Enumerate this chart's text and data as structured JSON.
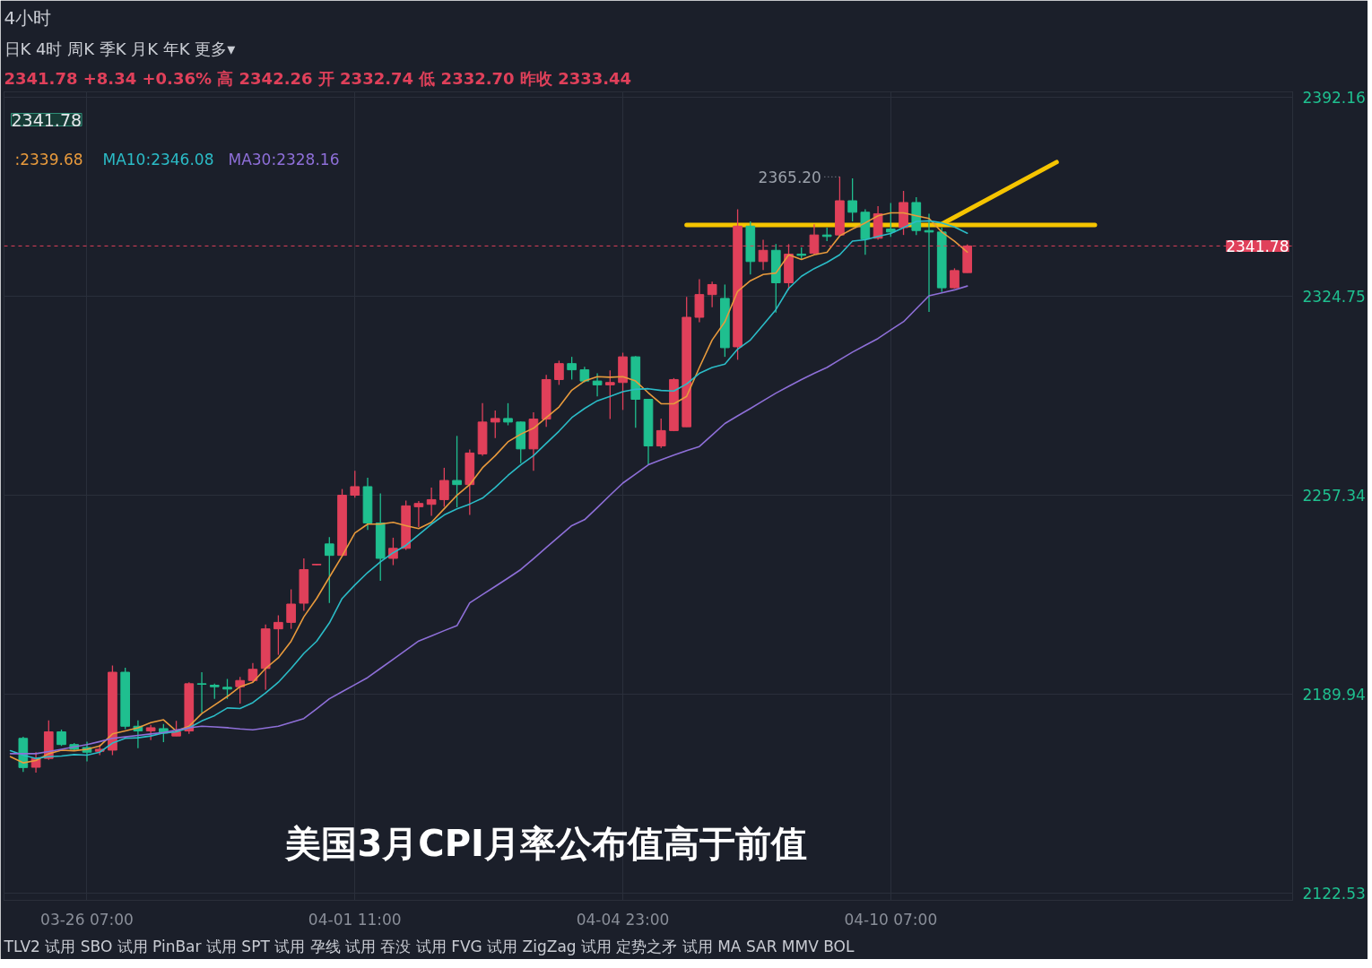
{
  "chart_data": {
    "type": "candlestick",
    "title": "4小时",
    "subtitle": "2341.78   +8.34   +0.36%   高 2342.26   开 2332.74   低 2332.70   昨收 2333.44",
    "categories": [
      null,
      null,
      null,
      null,
      null,
      null,
      "03-26 07:00",
      null,
      null,
      null,
      null,
      null,
      null,
      null,
      null,
      null,
      null,
      null,
      null,
      null,
      null,
      null,
      null,
      null,
      null,
      null,
      null,
      "04-01 11:00",
      null,
      null,
      null,
      null,
      null,
      null,
      null,
      null,
      null,
      null,
      null,
      null,
      null,
      null,
      null,
      null,
      null,
      null,
      null,
      null,
      "04-04 23:00",
      null,
      null,
      null,
      null,
      null,
      null,
      null,
      null,
      null,
      null,
      null,
      null,
      null,
      null,
      null,
      null,
      null,
      null,
      null,
      null,
      "04-10 07:00",
      null,
      null,
      null,
      null,
      null,
      null,
      null,
      null,
      null,
      null,
      null,
      null,
      null,
      null,
      null,
      null,
      null,
      null,
      null,
      null,
      null,
      null,
      null,
      null,
      null,
      null,
      null,
      null,
      null,
      null,
      null
    ],
    "ohlc": [
      null,
      [
        2174.9,
        2175.4,
        2163.5,
        2165.0
      ],
      [
        2165.1,
        2170.2,
        2163.3,
        2168.1
      ],
      [
        2168.1,
        2181.0,
        2167.6,
        2177.1
      ],
      [
        2177.1,
        2177.9,
        2172.3,
        2172.8
      ],
      [
        2172.8,
        2173.3,
        2170.7,
        2171.2
      ],
      [
        2171.8,
        2173.8,
        2167.1,
        2170.2
      ],
      [
        2170.5,
        2172.8,
        2169.2,
        2171.2
      ],
      [
        2170.9,
        2199.6,
        2169.2,
        2197.3
      ],
      [
        2197.3,
        2198.8,
        2178.0,
        2179.0
      ],
      [
        2179.0,
        2181.0,
        2171.6,
        2177.4
      ],
      [
        2177.4,
        2179.5,
        2174.3,
        2178.5
      ],
      [
        2178.2,
        2179.8,
        2173.6,
        2176.7
      ],
      [
        2175.7,
        2180.8,
        2175.7,
        2177.1
      ],
      [
        2177.4,
        2193.9,
        2176.4,
        2193.4
      ],
      [
        2193.4,
        2197.3,
        2183.6,
        2193.2
      ],
      [
        2192.9,
        2193.4,
        2188.3,
        2192.4
      ],
      [
        2192.2,
        2195.0,
        2188.3,
        2191.6
      ],
      [
        2192.4,
        2195.7,
        2186.7,
        2194.5
      ],
      [
        2194.5,
        2200.4,
        2193.9,
        2198.3
      ],
      [
        2198.6,
        2213.5,
        2191.4,
        2212.0
      ],
      [
        2212.0,
        2216.6,
        2203.2,
        2214.2
      ],
      [
        2214.2,
        2225.4,
        2212.0,
        2220.4
      ],
      [
        2220.7,
        2235.9,
        2218.1,
        2232.1
      ],
      [
        2233.7,
        2234.0,
        2233.6,
        2233.9
      ],
      [
        2240.8,
        2243.1,
        2220.8,
        2236.9
      ],
      [
        2236.9,
        2259.4,
        2236.7,
        2257.3
      ],
      [
        2257.3,
        2265.6,
        2256.5,
        2260.2
      ],
      [
        2260.2,
        2263.2,
        2245.5,
        2247.9
      ],
      [
        2247.9,
        2257.9,
        2228.3,
        2235.9
      ],
      [
        2235.9,
        2242.9,
        2233.6,
        2239.3
      ],
      [
        2239.3,
        2255.5,
        2238.8,
        2253.7
      ],
      [
        2253.4,
        2255.3,
        2246.5,
        2254.5
      ],
      [
        2254.2,
        2259.9,
        2250.3,
        2255.8
      ],
      [
        2255.8,
        2266.6,
        2253.4,
        2262.3
      ],
      [
        2262.3,
        2277.4,
        2253.2,
        2260.9
      ],
      [
        2260.9,
        2272.8,
        2250.6,
        2271.6
      ],
      [
        2271.3,
        2288.5,
        2270.7,
        2282.1
      ],
      [
        2282.1,
        2286.0,
        2276.7,
        2283.3
      ],
      [
        2283.3,
        2288.5,
        2281.0,
        2282.1
      ],
      [
        2282.1,
        2282.3,
        2268.2,
        2273.0
      ],
      [
        2273.0,
        2285.4,
        2265.6,
        2283.1
      ],
      [
        2283.1,
        2298.1,
        2280.5,
        2296.5
      ],
      [
        2296.5,
        2302.9,
        2294.7,
        2301.9
      ],
      [
        2301.9,
        2304.2,
        2296.5,
        2299.8
      ],
      [
        2299.8,
        2300.8,
        2295.5,
        2296.0
      ],
      [
        2296.0,
        2298.6,
        2290.8,
        2294.7
      ],
      [
        2294.7,
        2299.6,
        2283.1,
        2295.5
      ],
      [
        2295.5,
        2305.6,
        2286.2,
        2304.2
      ],
      [
        2304.2,
        2304.5,
        2280.2,
        2289.8
      ],
      [
        2289.8,
        2289.8,
        2267.6,
        2274.0
      ],
      [
        2274.0,
        2283.3,
        2273.3,
        2279.2
      ],
      [
        2279.2,
        2297.0,
        2279.0,
        2296.5
      ],
      [
        2280.5,
        2324.5,
        2280.5,
        2317.6
      ],
      [
        2317.6,
        2330.5,
        2315.9,
        2325.3
      ],
      [
        2325.3,
        2329.7,
        2321.0,
        2328.7
      ],
      [
        2324.0,
        2328.7,
        2304.2,
        2307.3
      ],
      [
        2307.6,
        2354.2,
        2303.2,
        2348.5
      ],
      [
        2348.5,
        2350.1,
        2332.1,
        2336.5
      ],
      [
        2336.5,
        2343.9,
        2333.6,
        2340.3
      ],
      [
        2340.3,
        2342.4,
        2319.2,
        2329.3
      ],
      [
        2329.3,
        2342.4,
        2326.9,
        2339.0
      ],
      [
        2339.0,
        2341.3,
        2337.2,
        2338.6
      ],
      [
        2339.3,
        2349.1,
        2338.8,
        2345.5
      ],
      [
        2345.5,
        2348.0,
        2343.4,
        2345.0
      ],
      [
        2345.5,
        2365.2,
        2345.0,
        2357.1
      ],
      [
        2357.1,
        2364.7,
        2350.1,
        2353.2
      ],
      [
        2353.2,
        2354.2,
        2338.8,
        2344.1
      ],
      [
        2344.4,
        2355.3,
        2343.9,
        2352.7
      ],
      [
        2347.5,
        2356.3,
        2344.9,
        2346.5
      ],
      [
        2348.0,
        2360.4,
        2345.5,
        2356.5
      ],
      [
        2356.5,
        2358.3,
        2345.5,
        2347.0
      ],
      [
        2347.0,
        2352.7,
        2319.4,
        2346.5
      ],
      [
        2346.5,
        2348.0,
        2326.2,
        2327.6
      ],
      [
        2327.6,
        2334.2,
        2327.4,
        2333.44
      ],
      [
        2332.74,
        2342.26,
        2332.7,
        2341.78
      ],
      null,
      null,
      null,
      null,
      null,
      null,
      null,
      null,
      null,
      null,
      null,
      null,
      null,
      null,
      null,
      null,
      null,
      null,
      null,
      null,
      null,
      null,
      null,
      null,
      null
    ],
    "colors": [
      null,
      "#1fbf8f",
      "#e0405a",
      "#e0405a",
      "#1fbf8f",
      "#1fbf8f",
      "#1fbf8f",
      "#e0405a",
      "#e0405a",
      "#1fbf8f",
      "#1fbf8f",
      "#e0405a",
      "#1fbf8f",
      "#e0405a",
      "#e0405a",
      "#1fbf8f",
      "#1fbf8f",
      "#1fbf8f",
      "#e0405a",
      "#e0405a",
      "#e0405a",
      "#e0405a",
      "#e0405a",
      "#e0405a",
      "#e0405a",
      "#1fbf8f",
      "#e0405a",
      "#e0405a",
      "#1fbf8f",
      "#1fbf8f",
      "#e0405a",
      "#e0405a",
      "#e0405a",
      "#e0405a",
      "#e0405a",
      "#1fbf8f",
      "#e0405a",
      "#e0405a",
      "#e0405a",
      "#1fbf8f",
      "#1fbf8f",
      "#e0405a",
      "#e0405a",
      "#e0405a",
      "#1fbf8f",
      "#1fbf8f",
      "#1fbf8f",
      "#e0405a",
      "#e0405a",
      "#1fbf8f",
      "#1fbf8f",
      "#e0405a",
      "#e0405a",
      "#e0405a",
      "#e0405a",
      "#e0405a",
      "#1fbf8f",
      "#e0405a",
      "#1fbf8f",
      "#e0405a",
      "#1fbf8f",
      "#e0405a",
      "#1fbf8f",
      "#e0405a",
      "#1fbf8f",
      "#e0405a",
      "#1fbf8f",
      "#1fbf8f",
      "#e0405a",
      "#1fbf8f",
      "#e0405a",
      "#1fbf8f",
      "#1fbf8f",
      "#1fbf8f",
      "#e0405a",
      "#e0405a",
      null,
      null,
      null,
      null,
      null,
      null,
      null,
      null,
      null,
      null,
      null,
      null,
      null,
      null,
      null,
      null,
      null,
      null,
      null,
      null,
      null,
      null,
      null,
      null,
      null
    ],
    "series": [
      {
        "type": "line",
        "name": ":2339.68",
        "color": "#e89a3c",
        "values": [
          2168.7,
          2166.6,
          2167.4,
          2169.7,
          2170.9,
          2170.7,
          2171.2,
          2172.3,
          2176.4,
          2177.4,
          2178.5,
          2180.2,
          2181.2,
          2177.4,
          2179.0,
          2183.3,
          2186.2,
          2189.1,
          2192.4,
          2193.9,
          2198.6,
          2202.2,
          2207.8,
          2216.1,
          2222.3,
          2229.5,
          2236.7,
          2244.5,
          2247.5,
          2247.5,
          2248.1,
          2247.0,
          2246.0,
          2248.1,
          2252.7,
          2257.3,
          2260.9,
          2266.6,
          2270.7,
          2275.4,
          2278.0,
          2280.0,
          2283.6,
          2287.2,
          2292.9,
          2296.0,
          2297.5,
          2297.3,
          2297.5,
          2296.0,
          2292.0,
          2288.3,
          2288.3,
          2290.8,
          2300.6,
          2309.9,
          2316.1,
          2326.4,
          2330.0,
          2332.1,
          2332.6,
          2338.8,
          2337.2,
          2338.8,
          2339.6,
          2345.2,
          2347.5,
          2349.6,
          2352.0,
          2353.0,
          2353.0,
          2352.0,
          2351.1,
          2346.5,
          2343.4,
          2339.7,
          null,
          null,
          null,
          null,
          null,
          null,
          null,
          null,
          null,
          null,
          null,
          null,
          null,
          null,
          null,
          null,
          null,
          null,
          null,
          null,
          null,
          null,
          null,
          null,
          null
        ]
      },
      {
        "type": "line",
        "name": "MA10:2346.08",
        "color": "#2bbcc7",
        "values": [
          2170.7,
          2169.2,
          2168.1,
          2168.7,
          2168.9,
          2169.4,
          2169.2,
          2170.2,
          2173.3,
          2174.9,
          2175.1,
          2175.7,
          2176.7,
          2177.1,
          2178.5,
          2180.8,
          2182.6,
          2185.2,
          2185.0,
          2187.0,
          2190.3,
          2193.9,
          2198.6,
          2203.7,
          2207.8,
          2214.0,
          2222.3,
          2226.9,
          2231.1,
          2234.7,
          2237.8,
          2240.3,
          2243.9,
          2247.5,
          2250.6,
          2252.7,
          2254.3,
          2256.3,
          2259.9,
          2264.0,
          2267.6,
          2270.7,
          2274.9,
          2279.0,
          2283.6,
          2286.7,
          2289.3,
          2290.8,
          2292.4,
          2293.2,
          2293.4,
          2292.8,
          2292.6,
          2295.0,
          2298.6,
          2300.6,
          2301.7,
          2306.8,
          2309.9,
          2315.0,
          2320.2,
          2327.4,
          2331.5,
          2334.1,
          2336.2,
          2338.8,
          2343.4,
          2343.9,
          2345.0,
          2346.0,
          2348.0,
          2350.1,
          2350.3,
          2349.6,
          2348.2,
          2346.1,
          null,
          null,
          null,
          null,
          null,
          null,
          null,
          null,
          null,
          null,
          null,
          null,
          null,
          null,
          null,
          null,
          null,
          null,
          null,
          null,
          null,
          null,
          null,
          null,
          null
        ]
      },
      {
        "type": "line",
        "name": "MA30:2328.16",
        "color": "#8e6fd8",
        "values": [
          2169.7,
          2169.7,
          2169.7,
          2170.4,
          2171.2,
          2172.0,
          2172.8,
          2173.8,
          2174.9,
          2175.4,
          2175.9,
          2176.4,
          2176.9,
          2177.7,
          2178.5,
          2179.0,
          2178.8,
          2178.5,
          2178.1,
          2177.8,
          2178.4,
          2179.0,
          2180.3,
          2181.6,
          2184.9,
          2188.3,
          2190.7,
          2193.1,
          2195.5,
          2198.6,
          2201.7,
          2204.8,
          2207.9,
          2209.6,
          2211.4,
          2213.1,
          2220.8,
          2223.6,
          2226.4,
          2229.2,
          2232.1,
          2235.8,
          2239.6,
          2243.3,
          2247.0,
          2249.0,
          2253.1,
          2257.3,
          2261.4,
          2264.5,
          2267.6,
          2269.3,
          2270.9,
          2272.4,
          2273.8,
          2277.7,
          2281.6,
          2284.2,
          2286.7,
          2289.3,
          2291.9,
          2294.2,
          2296.5,
          2298.6,
          2300.6,
          2303.2,
          2305.8,
          2308.1,
          2310.4,
          2313.3,
          2316.1,
          2320.5,
          2324.9,
          2325.9,
          2326.9,
          2328.2,
          null,
          null,
          null,
          null,
          null,
          null,
          null,
          null,
          null,
          null,
          null,
          null,
          null,
          null,
          null,
          null,
          null,
          null,
          null,
          null,
          null,
          null,
          null,
          null,
          null
        ]
      },
      {
        "type": "line",
        "color": "#f5c400",
        "values": [
          null,
          null,
          null,
          null,
          null,
          null,
          null,
          null,
          null,
          null,
          null,
          null,
          null,
          null,
          null,
          null,
          null,
          null,
          null,
          null,
          null,
          null,
          null,
          null,
          null,
          null,
          null,
          null,
          null,
          null,
          null,
          null,
          null,
          null,
          null,
          null,
          null,
          null,
          null,
          null,
          null,
          null,
          null,
          null,
          null,
          null,
          null,
          null,
          null,
          null,
          null,
          null,
          null,
          2348.9,
          null,
          null,
          null,
          null,
          null,
          null,
          null,
          null,
          null,
          null,
          null,
          null,
          null,
          null,
          null,
          null,
          null,
          null,
          null,
          null,
          null,
          null,
          null,
          null,
          null,
          null,
          null,
          null,
          null,
          null,
          null,
          2348.9,
          null,
          null,
          null,
          null,
          null,
          null,
          null,
          null,
          null,
          null,
          null,
          null,
          null,
          null,
          null
        ]
      },
      {
        "type": "line",
        "color": "#f5c400",
        "values": [
          null,
          null,
          null,
          null,
          null,
          null,
          null,
          null,
          null,
          null,
          null,
          null,
          null,
          null,
          null,
          null,
          null,
          null,
          null,
          null,
          null,
          null,
          null,
          null,
          null,
          null,
          null,
          null,
          null,
          null,
          null,
          null,
          null,
          null,
          null,
          null,
          null,
          null,
          null,
          null,
          null,
          null,
          null,
          null,
          null,
          null,
          null,
          null,
          null,
          null,
          null,
          null,
          null,
          null,
          null,
          null,
          null,
          null,
          null,
          null,
          null,
          null,
          null,
          null,
          null,
          null,
          null,
          null,
          null,
          null,
          null,
          null,
          null,
          2349.2,
          null,
          null,
          null,
          null,
          null,
          null,
          null,
          null,
          2370.2,
          null,
          null,
          null,
          null,
          null,
          null,
          null,
          null,
          null,
          null,
          null,
          null,
          null,
          null,
          null,
          null,
          null,
          null
        ]
      }
    ],
    "ylim": [
      2120,
      2394
    ],
    "yticks": [
      2122.53,
      2189.94,
      2257.34,
      2324.75,
      2392.16
    ],
    "grid": true,
    "ref_lines": [
      {
        "axis": "y",
        "value": 2341.78,
        "label": "2341.78",
        "color": "#e0405a",
        "line_style": "dashed"
      }
    ],
    "annotations": [
      "美国3月CPI月率公布值高于前值",
      "2341.78",
      "日K   4时   周K   季K   月K   年K   更多▾",
      "TLV2 试用    SBO 试用    PinBar 试用    SPT 试用    孕线 试用    吞没 试用    FVG 试用    ZigZag 试用    定势之矛 试用        MA   SAR   MMV   BOL",
      "2365.20"
    ]
  }
}
